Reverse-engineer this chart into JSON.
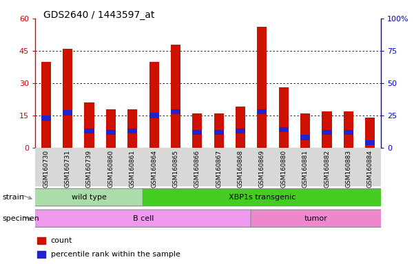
{
  "title": "GDS2640 / 1443597_at",
  "samples": [
    "GSM160730",
    "GSM160731",
    "GSM160739",
    "GSM160860",
    "GSM160861",
    "GSM160864",
    "GSM160865",
    "GSM160866",
    "GSM160867",
    "GSM160868",
    "GSM160869",
    "GSM160880",
    "GSM160881",
    "GSM160882",
    "GSM160883",
    "GSM160884"
  ],
  "count_values": [
    40,
    46,
    21,
    18,
    18,
    40,
    48,
    16,
    16,
    19,
    56,
    28,
    16,
    17,
    17,
    14
  ],
  "percentile_values": [
    23,
    27,
    13,
    12,
    13,
    25,
    28,
    12,
    12,
    13,
    28,
    14,
    8,
    12,
    12,
    4
  ],
  "bar_width": 0.45,
  "count_color": "#cc1100",
  "percentile_color": "#2222cc",
  "ylim_left": [
    0,
    60
  ],
  "ylim_right": [
    0,
    100
  ],
  "yticks_left": [
    0,
    15,
    30,
    45,
    60
  ],
  "yticks_right": [
    0,
    25,
    50,
    75,
    100
  ],
  "ytick_labels_right": [
    "0",
    "25",
    "50",
    "75",
    "100%"
  ],
  "strain_groups": [
    {
      "label": "wild type",
      "start": 0,
      "end": 4,
      "color": "#aaddaa"
    },
    {
      "label": "XBP1s transgenic",
      "start": 5,
      "end": 15,
      "color": "#44cc22"
    }
  ],
  "specimen_groups": [
    {
      "label": "B cell",
      "start": 0,
      "end": 9,
      "color": "#ee99ee"
    },
    {
      "label": "tumor",
      "start": 10,
      "end": 15,
      "color": "#ee88cc"
    }
  ],
  "strain_label": "strain",
  "specimen_label": "specimen",
  "legend_count_label": "count",
  "legend_percentile_label": "percentile rank within the sample",
  "left_axis_color": "#cc0000",
  "right_axis_color": "#0000cc",
  "title_fontsize": 10,
  "tick_fontsize": 6.5,
  "label_fontsize": 8
}
